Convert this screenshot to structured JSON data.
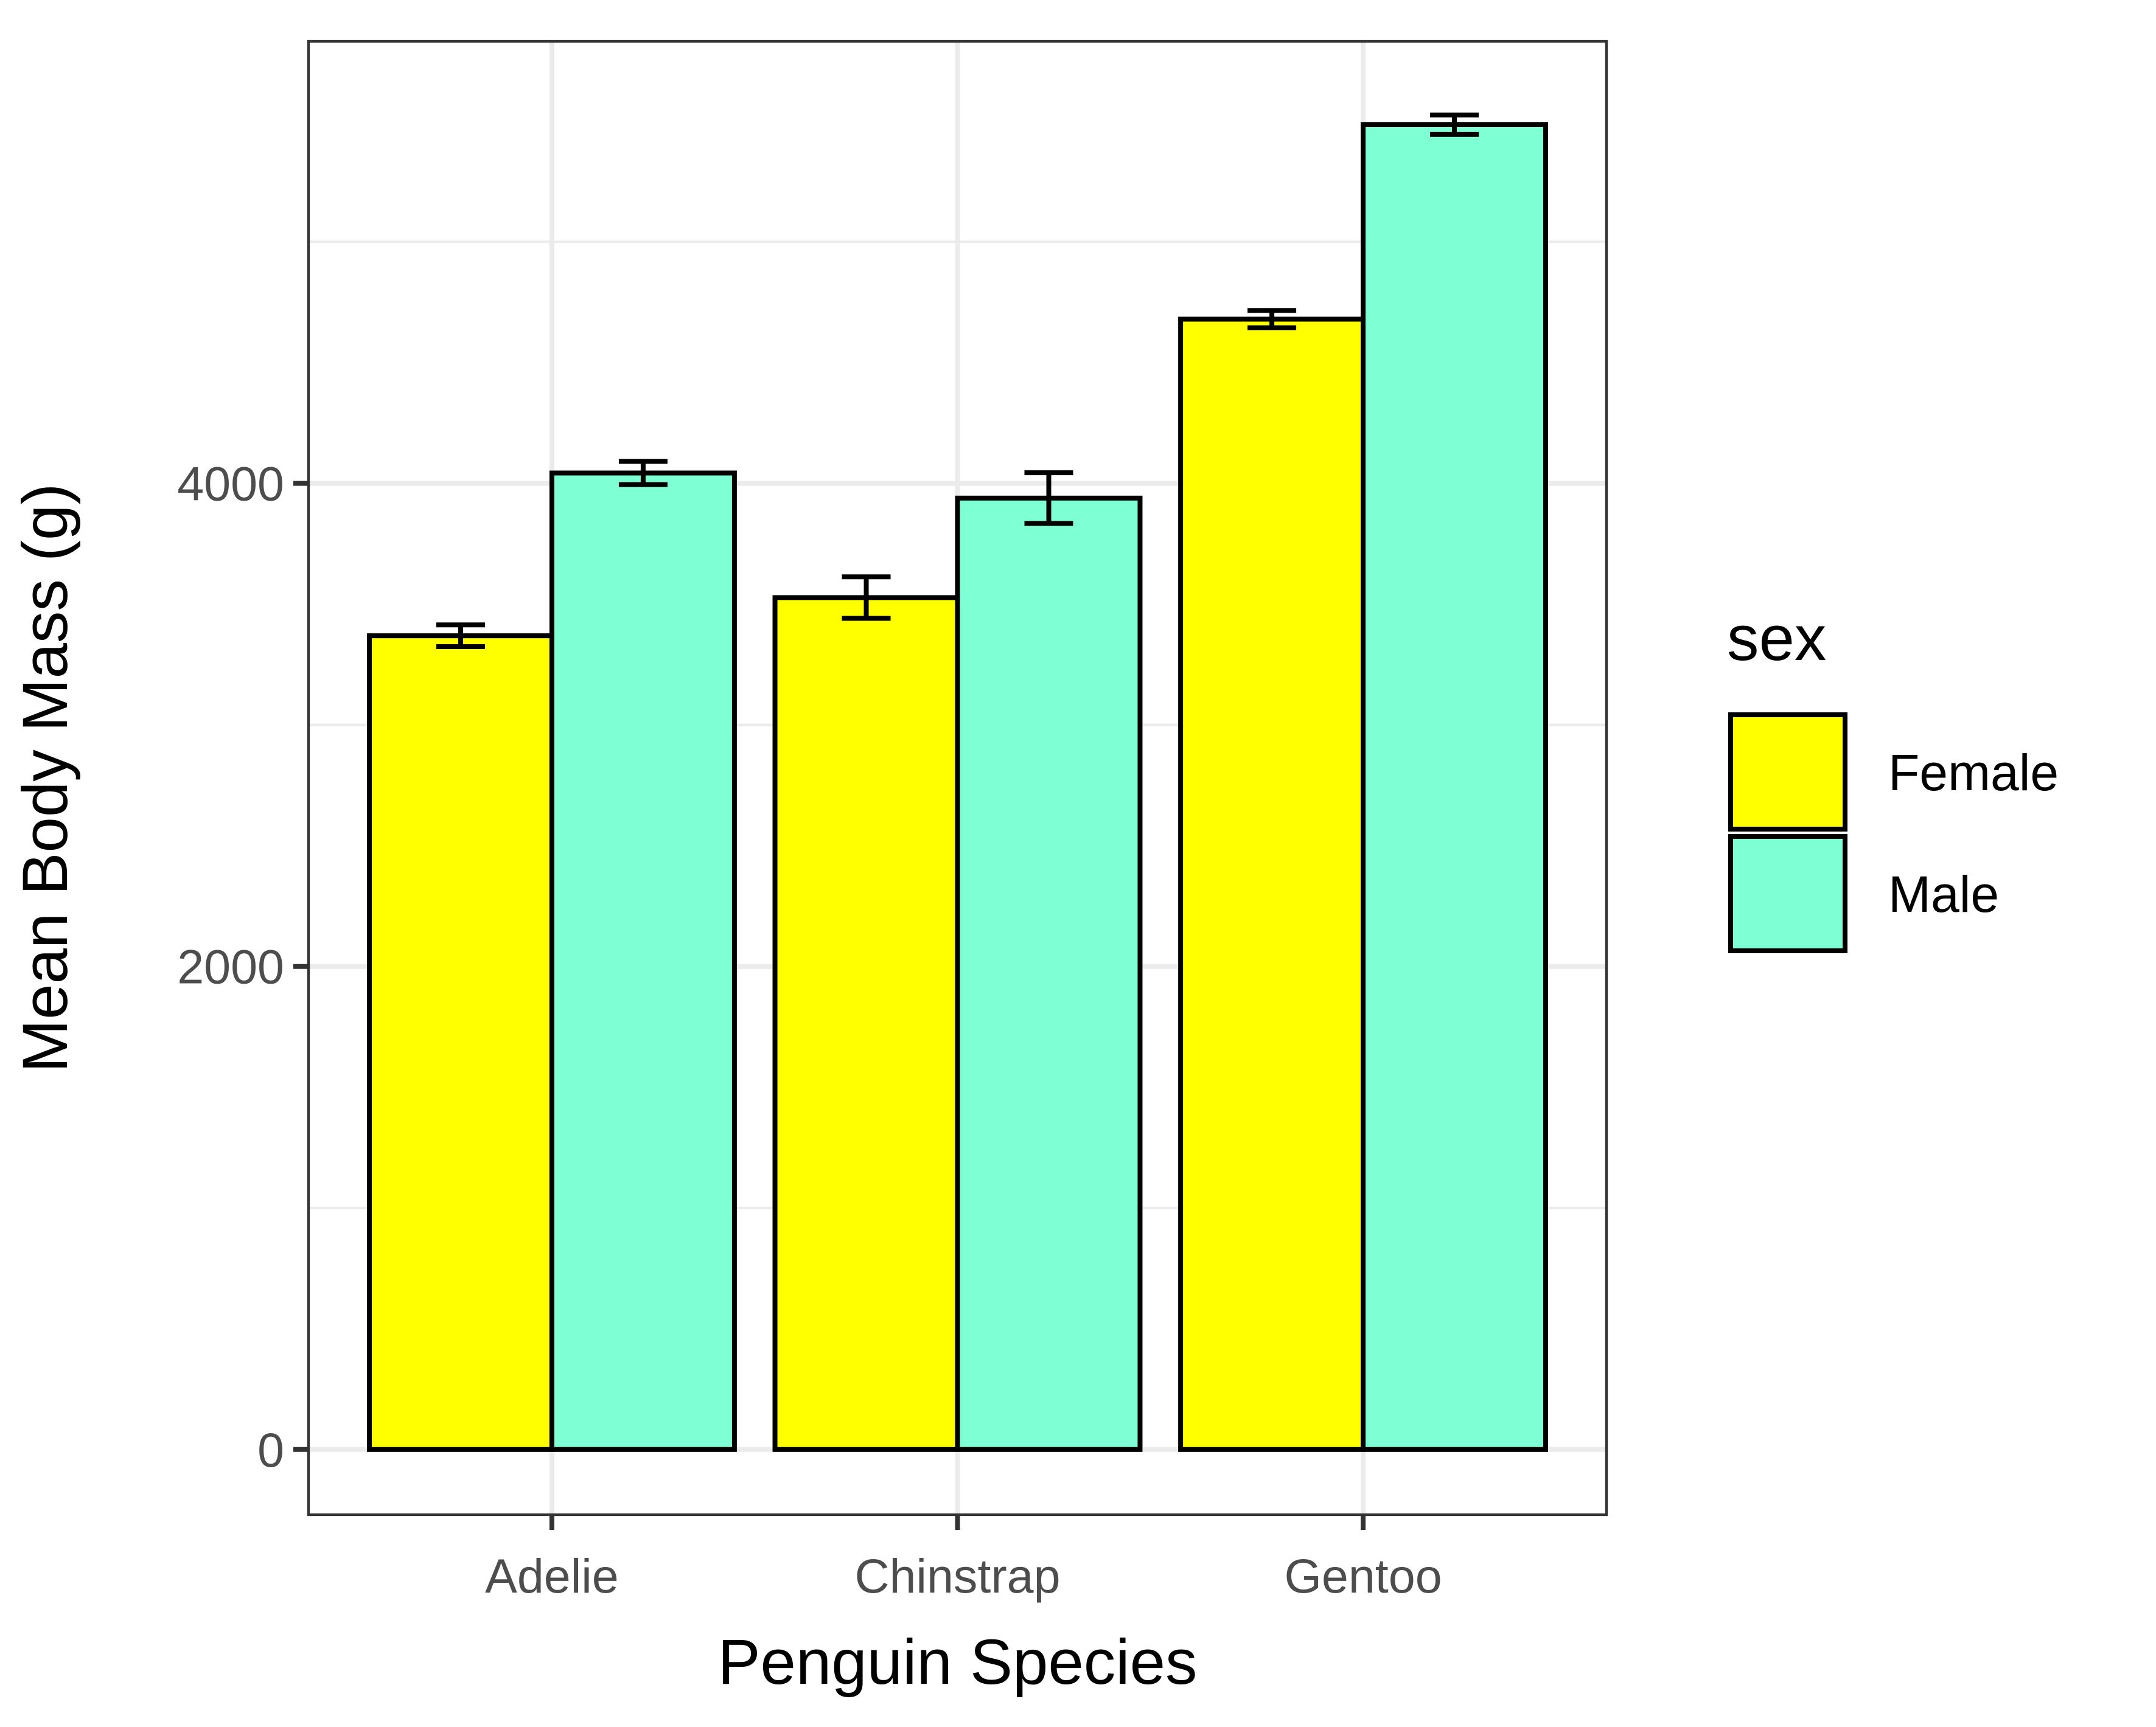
{
  "chart_data": {
    "type": "bar",
    "xlabel": "Penguin Species",
    "ylabel": "Mean Body Mass (g)",
    "categories": [
      "Adelie",
      "Chinstrap",
      "Gentoo"
    ],
    "series": [
      {
        "name": "Female",
        "color": "#FFFF00",
        "values": [
          3369,
          3527,
          4680
        ],
        "error": [
          45,
          86,
          36
        ]
      },
      {
        "name": "Male",
        "color": "#7FFFD4",
        "values": [
          4043,
          3939,
          5485
        ],
        "error": [
          48,
          105,
          40
        ]
      }
    ],
    "ylim": [
      -270,
      5830
    ],
    "yticks": [
      0,
      2000,
      4000
    ],
    "grid": true,
    "legend": {
      "title": "sex",
      "position": "right"
    }
  }
}
